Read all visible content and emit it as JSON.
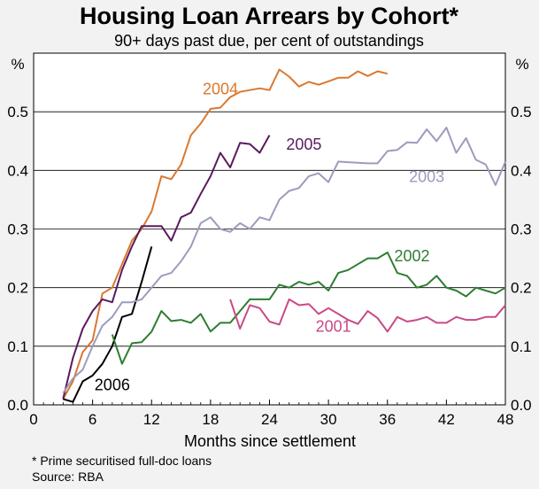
{
  "chart_data": {
    "type": "line",
    "title": "Housing Loan Arrears by Cohort*",
    "subtitle": "90+ days past due, per cent of outstandings",
    "xlabel": "Months since settlement",
    "y_unit_left": "%",
    "y_unit_right": "%",
    "xlim": [
      0,
      48
    ],
    "ylim": [
      0,
      0.6
    ],
    "x_ticks": [
      0,
      6,
      12,
      18,
      24,
      30,
      36,
      42,
      48
    ],
    "y_ticks": [
      0.0,
      0.1,
      0.2,
      0.3,
      0.4,
      0.5
    ],
    "grid": "horizontal",
    "footnote": "*   Prime securitised full-doc loans",
    "source": "Source: RBA",
    "series": [
      {
        "name": "2004",
        "color": "#d9782f",
        "label_at": [
          19,
          0.53
        ],
        "points": [
          [
            3,
            0.01
          ],
          [
            4,
            0.04
          ],
          [
            5,
            0.09
          ],
          [
            6,
            0.11
          ],
          [
            7,
            0.19
          ],
          [
            8,
            0.2
          ],
          [
            9,
            0.24
          ],
          [
            10,
            0.28
          ],
          [
            11,
            0.3
          ],
          [
            12,
            0.33
          ],
          [
            13,
            0.39
          ],
          [
            14,
            0.385
          ],
          [
            15,
            0.41
          ],
          [
            16,
            0.46
          ],
          [
            17,
            0.48
          ],
          [
            18,
            0.505
          ],
          [
            19,
            0.507
          ],
          [
            20,
            0.525
          ],
          [
            21,
            0.534
          ],
          [
            22,
            0.537
          ],
          [
            23,
            0.54
          ],
          [
            24,
            0.537
          ],
          [
            25,
            0.572
          ],
          [
            26,
            0.56
          ],
          [
            27,
            0.543
          ],
          [
            28,
            0.551
          ],
          [
            29,
            0.546
          ],
          [
            30,
            0.552
          ],
          [
            31,
            0.558
          ],
          [
            32,
            0.558
          ],
          [
            33,
            0.569
          ],
          [
            34,
            0.561
          ],
          [
            35,
            0.569
          ],
          [
            36,
            0.565
          ]
        ]
      },
      {
        "name": "2005",
        "color": "#5a1a5e",
        "label_at": [
          27.5,
          0.435
        ],
        "points": [
          [
            3,
            0.01
          ],
          [
            4,
            0.08
          ],
          [
            5,
            0.13
          ],
          [
            6,
            0.16
          ],
          [
            7,
            0.18
          ],
          [
            8,
            0.175
          ],
          [
            9,
            0.23
          ],
          [
            10,
            0.27
          ],
          [
            11,
            0.305
          ],
          [
            12,
            0.305
          ],
          [
            13,
            0.305
          ],
          [
            14,
            0.28
          ],
          [
            15,
            0.32
          ],
          [
            16,
            0.328
          ],
          [
            17,
            0.36
          ],
          [
            18,
            0.39
          ],
          [
            19,
            0.43
          ],
          [
            20,
            0.405
          ],
          [
            21,
            0.447
          ],
          [
            22,
            0.445
          ],
          [
            23,
            0.43
          ],
          [
            24,
            0.46
          ]
        ]
      },
      {
        "name": "2006",
        "color": "#000000",
        "label_at": [
          8,
          0.025
        ],
        "points": [
          [
            3,
            0.01
          ],
          [
            4,
            0.005
          ],
          [
            5,
            0.04
          ],
          [
            6,
            0.05
          ],
          [
            7,
            0.07
          ],
          [
            8,
            0.1
          ],
          [
            9,
            0.15
          ],
          [
            10,
            0.155
          ],
          [
            11,
            0.21
          ],
          [
            12,
            0.27
          ]
        ]
      },
      {
        "name": "2003",
        "color": "#9c9cbd",
        "label_at": [
          40,
          0.38
        ],
        "points": [
          [
            3,
            0.02
          ],
          [
            4,
            0.045
          ],
          [
            5,
            0.06
          ],
          [
            6,
            0.1
          ],
          [
            7,
            0.135
          ],
          [
            8,
            0.15
          ],
          [
            9,
            0.175
          ],
          [
            10,
            0.175
          ],
          [
            11,
            0.18
          ],
          [
            12,
            0.2
          ],
          [
            13,
            0.22
          ],
          [
            14,
            0.225
          ],
          [
            15,
            0.245
          ],
          [
            16,
            0.27
          ],
          [
            17,
            0.31
          ],
          [
            18,
            0.32
          ],
          [
            19,
            0.3
          ],
          [
            20,
            0.295
          ],
          [
            21,
            0.31
          ],
          [
            22,
            0.3
          ],
          [
            23,
            0.32
          ],
          [
            24,
            0.315
          ],
          [
            25,
            0.35
          ],
          [
            26,
            0.365
          ],
          [
            27,
            0.37
          ],
          [
            28,
            0.39
          ],
          [
            29,
            0.395
          ],
          [
            30,
            0.38
          ],
          [
            31,
            0.415
          ],
          [
            32,
            0.414
          ],
          [
            33,
            0.413
          ],
          [
            34,
            0.412
          ],
          [
            35,
            0.412
          ],
          [
            36,
            0.433
          ],
          [
            37,
            0.435
          ],
          [
            38,
            0.448
          ],
          [
            39,
            0.447
          ],
          [
            40,
            0.47
          ],
          [
            41,
            0.45
          ],
          [
            42,
            0.473
          ],
          [
            43,
            0.43
          ],
          [
            44,
            0.455
          ],
          [
            45,
            0.418
          ],
          [
            46,
            0.41
          ],
          [
            47,
            0.375
          ],
          [
            48,
            0.415
          ]
        ]
      },
      {
        "name": "2002",
        "color": "#2e7d32",
        "label_at": [
          38.5,
          0.245
        ],
        "points": [
          [
            8,
            0.12
          ],
          [
            9,
            0.07
          ],
          [
            10,
            0.105
          ],
          [
            11,
            0.107
          ],
          [
            12,
            0.125
          ],
          [
            13,
            0.16
          ],
          [
            14,
            0.143
          ],
          [
            15,
            0.145
          ],
          [
            16,
            0.14
          ],
          [
            17,
            0.155
          ],
          [
            18,
            0.125
          ],
          [
            19,
            0.14
          ],
          [
            20,
            0.14
          ],
          [
            21,
            0.16
          ],
          [
            22,
            0.18
          ],
          [
            23,
            0.18
          ],
          [
            24,
            0.18
          ],
          [
            25,
            0.205
          ],
          [
            26,
            0.2
          ],
          [
            27,
            0.21
          ],
          [
            28,
            0.205
          ],
          [
            29,
            0.21
          ],
          [
            30,
            0.195
          ],
          [
            31,
            0.225
          ],
          [
            32,
            0.23
          ],
          [
            33,
            0.24
          ],
          [
            34,
            0.25
          ],
          [
            35,
            0.25
          ],
          [
            36,
            0.26
          ],
          [
            37,
            0.225
          ],
          [
            38,
            0.22
          ],
          [
            39,
            0.2
          ],
          [
            40,
            0.205
          ],
          [
            41,
            0.22
          ],
          [
            42,
            0.2
          ],
          [
            43,
            0.195
          ],
          [
            44,
            0.185
          ],
          [
            45,
            0.2
          ],
          [
            46,
            0.195
          ],
          [
            47,
            0.19
          ],
          [
            48,
            0.2
          ]
        ]
      },
      {
        "name": "2001",
        "color": "#c94a86",
        "label_at": [
          30.5,
          0.125
        ],
        "points": [
          [
            20,
            0.18
          ],
          [
            21,
            0.13
          ],
          [
            22,
            0.17
          ],
          [
            23,
            0.165
          ],
          [
            24,
            0.142
          ],
          [
            25,
            0.137
          ],
          [
            26,
            0.18
          ],
          [
            27,
            0.17
          ],
          [
            28,
            0.172
          ],
          [
            29,
            0.155
          ],
          [
            30,
            0.165
          ],
          [
            31,
            0.155
          ],
          [
            32,
            0.145
          ],
          [
            33,
            0.138
          ],
          [
            34,
            0.16
          ],
          [
            35,
            0.148
          ],
          [
            36,
            0.125
          ],
          [
            37,
            0.15
          ],
          [
            38,
            0.142
          ],
          [
            39,
            0.145
          ],
          [
            40,
            0.15
          ],
          [
            41,
            0.14
          ],
          [
            42,
            0.14
          ],
          [
            43,
            0.15
          ],
          [
            44,
            0.145
          ],
          [
            45,
            0.145
          ],
          [
            46,
            0.15
          ],
          [
            47,
            0.15
          ],
          [
            48,
            0.17
          ]
        ]
      }
    ]
  }
}
